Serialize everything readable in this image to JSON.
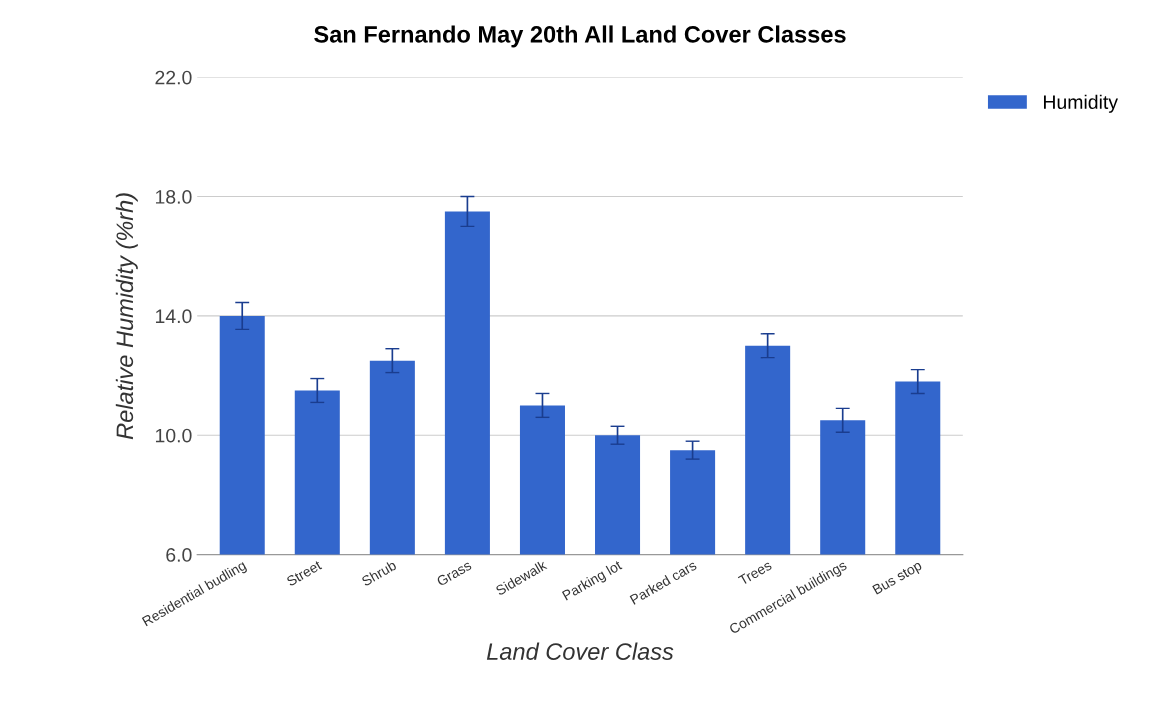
{
  "chart_data": {
    "type": "bar",
    "title": "San Fernando May 20th All Land Cover Classes",
    "xlabel": "Land Cover Class",
    "ylabel": "Relative Humidity (%rh)",
    "categories": [
      "Residential budling",
      "Street",
      "Shrub",
      "Grass",
      "Sidewalk",
      "Parking lot",
      "Parked cars",
      "Trees",
      "Commercial buildings",
      "Bus stop"
    ],
    "series": [
      {
        "name": "Humidity",
        "color": "#3366cc",
        "values": [
          14.0,
          11.5,
          12.5,
          17.5,
          11.0,
          10.0,
          9.5,
          13.0,
          10.5,
          11.8
        ],
        "errors": [
          0.45,
          0.4,
          0.4,
          0.5,
          0.4,
          0.3,
          0.3,
          0.4,
          0.4,
          0.4
        ]
      }
    ],
    "ylim": [
      6,
      22
    ],
    "yticks": [
      {
        "value": 6,
        "label": "6.0"
      },
      {
        "value": 10,
        "label": "10.0"
      },
      {
        "value": 14,
        "label": "14.0"
      },
      {
        "value": 18,
        "label": "18.0"
      },
      {
        "value": 22,
        "label": "22.0"
      }
    ],
    "grid": "y",
    "legend": "top right"
  }
}
